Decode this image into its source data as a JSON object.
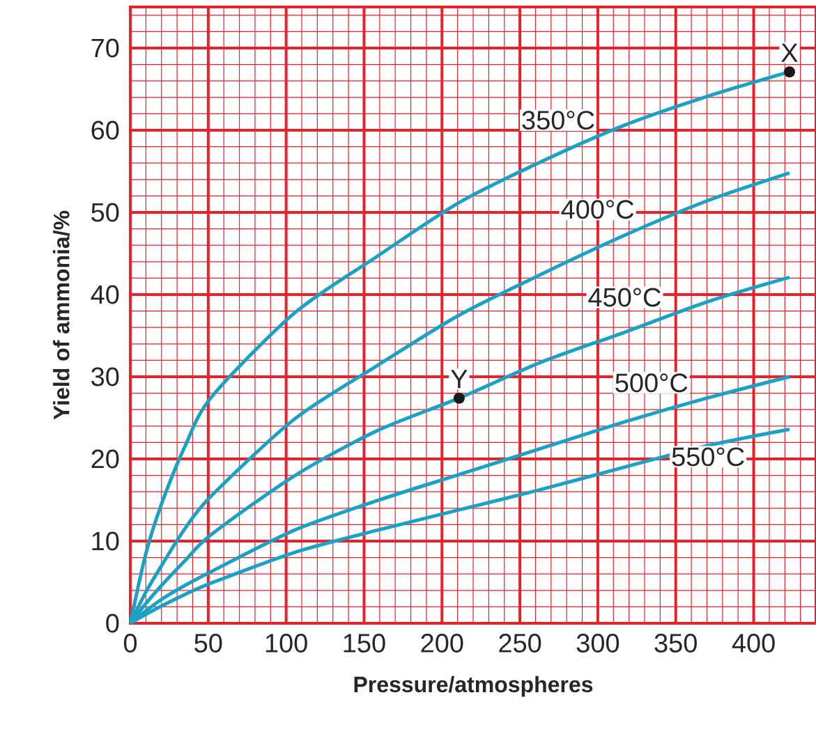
{
  "chart_data": {
    "type": "line",
    "xlabel": "Pressure/atmospheres",
    "ylabel": "Yield of ammonia/%",
    "x": [
      0,
      10,
      20,
      35,
      52,
      105,
      158,
      211,
      264,
      317,
      370,
      423
    ],
    "series": [
      {
        "name": "350°C",
        "color": "#1ba1c3",
        "values": [
          0,
          8.5,
          14.5,
          21.5,
          27.5,
          37.7,
          44.6,
          51.2,
          56.2,
          60.6,
          64.1,
          67.1
        ]
      },
      {
        "name": "400°C",
        "color": "#1ba1c3",
        "values": [
          0,
          3.8,
          7.0,
          11.5,
          15.5,
          24.8,
          31.3,
          37.5,
          42.5,
          47.2,
          51.4,
          54.8
        ]
      },
      {
        "name": "450°C",
        "color": "#1ba1c3",
        "values": [
          0,
          2.4,
          4.6,
          7.6,
          10.8,
          17.9,
          23.4,
          27.4,
          31.8,
          35.4,
          39.1,
          42.1
        ]
      },
      {
        "name": "500°C",
        "color": "#1ba1c3",
        "values": [
          0,
          1.5,
          2.9,
          4.6,
          6.3,
          11.3,
          14.9,
          18.1,
          21.3,
          24.5,
          27.4,
          30.0
        ]
      },
      {
        "name": "550°C",
        "color": "#1ba1c3",
        "values": [
          0,
          1.1,
          2.1,
          3.5,
          4.9,
          8.6,
          11.3,
          13.8,
          16.3,
          19.0,
          21.6,
          23.6
        ]
      }
    ],
    "xlim": [
      0,
      440
    ],
    "ylim": [
      0,
      75
    ],
    "xticks": [
      0,
      {
        "value": 10,
        "label": null
      },
      {
        "value": 20,
        "label": null
      },
      {
        "value": 30,
        "label": null
      },
      {
        "value": 40,
        "label": null
      },
      50,
      {
        "value": 60,
        "label": null
      },
      {
        "value": 70,
        "label": null
      },
      {
        "value": 80,
        "label": null
      },
      {
        "value": 90,
        "label": null
      },
      100,
      {
        "value": 110,
        "label": null
      },
      {
        "value": 120,
        "label": null
      },
      {
        "value": 130,
        "label": null
      },
      {
        "value": 140,
        "label": null
      },
      150,
      {
        "value": 160,
        "label": null
      },
      {
        "value": 170,
        "label": null
      },
      {
        "value": 180,
        "label": null
      },
      {
        "value": 190,
        "label": null
      },
      200,
      {
        "value": 210,
        "label": null
      },
      {
        "value": 220,
        "label": null
      },
      {
        "value": 230,
        "label": null
      },
      {
        "value": 240,
        "label": null
      },
      250,
      {
        "value": 260,
        "label": null
      },
      {
        "value": 270,
        "label": null
      },
      {
        "value": 280,
        "label": null
      },
      {
        "value": 290,
        "label": null
      },
      300,
      {
        "value": 310,
        "label": null
      },
      {
        "value": 320,
        "label": null
      },
      {
        "value": 330,
        "label": null
      },
      {
        "value": 340,
        "label": null
      },
      350,
      {
        "value": 360,
        "label": null
      },
      {
        "value": 370,
        "label": null
      },
      {
        "value": 380,
        "label": null
      },
      {
        "value": 390,
        "label": null
      },
      400,
      {
        "value": 410,
        "label": null
      },
      {
        "value": 420,
        "label": null
      },
      {
        "value": 430,
        "label": null
      },
      {
        "value": 440,
        "label": null
      }
    ],
    "yticks": [
      0,
      {
        "value": 2,
        "label": null
      },
      {
        "value": 4,
        "label": null
      },
      {
        "value": 6,
        "label": null
      },
      {
        "value": 8,
        "label": null
      },
      10,
      {
        "value": 12,
        "label": null
      },
      {
        "value": 14,
        "label": null
      },
      {
        "value": 16,
        "label": null
      },
      {
        "value": 18,
        "label": null
      },
      20,
      {
        "value": 22,
        "label": null
      },
      {
        "value": 24,
        "label": null
      },
      {
        "value": 26,
        "label": null
      },
      {
        "value": 28,
        "label": null
      },
      30,
      {
        "value": 32,
        "label": null
      },
      {
        "value": 34,
        "label": null
      },
      {
        "value": 36,
        "label": null
      },
      {
        "value": 38,
        "label": null
      },
      40,
      {
        "value": 42,
        "label": null
      },
      {
        "value": 44,
        "label": null
      },
      {
        "value": 46,
        "label": null
      },
      {
        "value": 48,
        "label": null
      },
      50,
      {
        "value": 52,
        "label": null
      },
      {
        "value": 54,
        "label": null
      },
      {
        "value": 56,
        "label": null
      },
      {
        "value": 58,
        "label": null
      },
      60,
      {
        "value": 62,
        "label": null
      },
      {
        "value": 64,
        "label": null
      },
      {
        "value": 66,
        "label": null
      },
      {
        "value": 68,
        "label": null
      },
      70,
      {
        "value": 72,
        "label": null
      },
      {
        "value": 74,
        "label": null
      }
    ],
    "grid": true,
    "marker": "none",
    "line_style": "solid",
    "annotations": [
      {
        "text": "X",
        "x": 423,
        "y": 67.1
      },
      {
        "text": "Y",
        "x": 211,
        "y": 27.4
      }
    ]
  }
}
